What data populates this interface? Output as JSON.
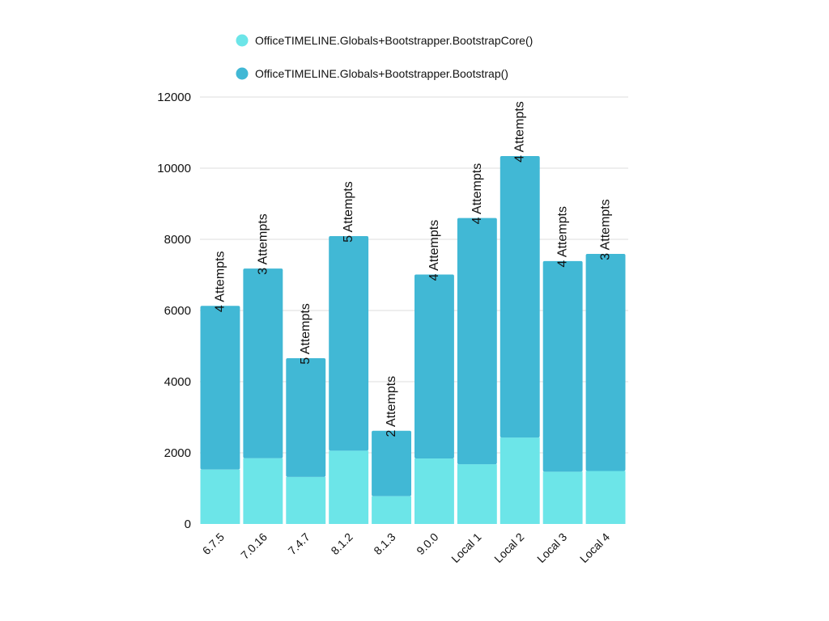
{
  "chart_data": {
    "type": "bar",
    "stacked": true,
    "title": "",
    "xlabel": "",
    "ylabel": "",
    "ylim": [
      0,
      12000
    ],
    "yticks": [
      0,
      2000,
      4000,
      6000,
      8000,
      10000,
      12000
    ],
    "grid": true,
    "legend_position": "top",
    "categories": [
      "6.7.5",
      "7.0.16",
      "7.4.7",
      "8.1.2",
      "8.1.3",
      "9.0.0",
      "Local 1",
      "Local 2",
      "Local 3",
      "Local 4"
    ],
    "series": [
      {
        "name": "OfficeTIMELINE.Globals+Bootstrapper.BootstrapCore()",
        "color": "#6ce5e8",
        "values": [
          1530,
          1850,
          1320,
          2060,
          780,
          1840,
          1680,
          2430,
          1470,
          1490
        ]
      },
      {
        "name": "OfficeTIMELINE.Globals+Bootstrapper.Bootstrap()",
        "color": "#41b8d5",
        "values": [
          4600,
          5330,
          3340,
          6030,
          1840,
          5170,
          6920,
          7910,
          5920,
          6100
        ]
      }
    ],
    "annotations": [
      "4 Attempts",
      "3 Attempts",
      "5 Attempts",
      "5 Attempts",
      "2 Attempts",
      "4 Attempts",
      "4 Attempts",
      "4 Attempts",
      "4 Attempts",
      "3 Attempts"
    ]
  }
}
